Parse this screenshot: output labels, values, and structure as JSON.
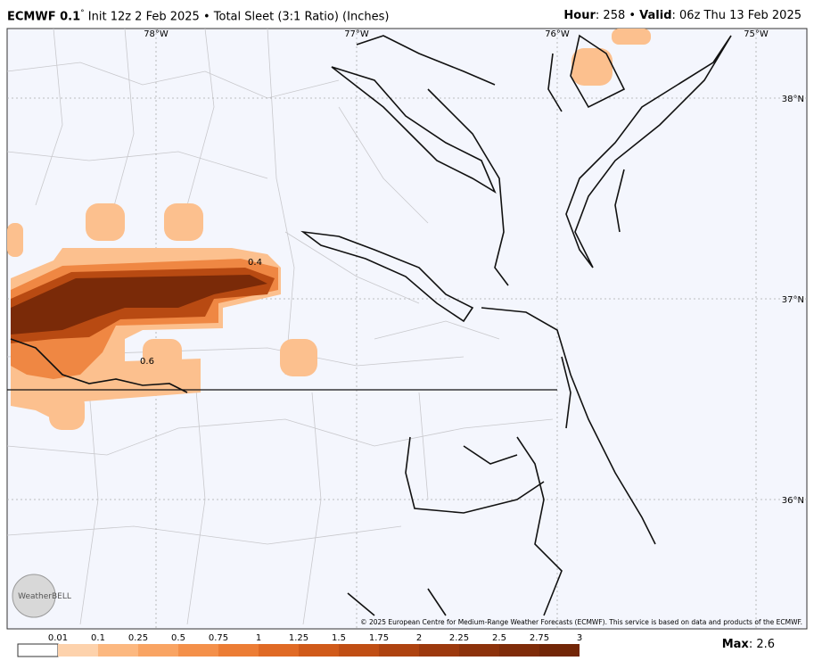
{
  "header": {
    "left": [
      {
        "text": "ECMWF 0.1",
        "bold": true
      },
      {
        "text": "°",
        "sup": true
      },
      {
        "text": " Init 12z 2 Feb 2025 • Total Sleet (3:1 Ratio) (Inches)"
      }
    ],
    "right": [
      {
        "text": "Hour",
        "bold": true
      },
      {
        "text": ": 258 • "
      },
      {
        "text": "Valid",
        "bold": true
      },
      {
        "text": ": 06z Thu 13 Feb 2025"
      }
    ]
  },
  "map": {
    "lon_labels": [
      "78°W",
      "77°W",
      "76°W",
      "75°W"
    ],
    "lat_labels": [
      "38°N",
      "37°N",
      "36°N"
    ],
    "contour_labels": [
      "0.4",
      "0.6"
    ],
    "logo": "WeatherBELL",
    "credit": "© 2025 European Centre for Medium-Range Weather Forecasts (ECMWF). This service is based on data and products of the ECMWF."
  },
  "legend": {
    "labels": [
      "0.01",
      "0.1",
      "0.25",
      "0.5",
      "0.75",
      "1",
      "1.25",
      "1.5",
      "1.75",
      "2",
      "2.25",
      "2.5",
      "2.75",
      "3"
    ],
    "colors": [
      "#fdd2ac",
      "#fcb880",
      "#f9a463",
      "#f4904a",
      "#ec7d35",
      "#e06a25",
      "#d05a1a",
      "#c04e14",
      "#ae4310",
      "#9c390d",
      "#8c320b",
      "#7f2c09",
      "#722607"
    ],
    "max": [
      {
        "text": "Max",
        "bold": true
      },
      {
        "text": ": 2.6"
      }
    ]
  }
}
